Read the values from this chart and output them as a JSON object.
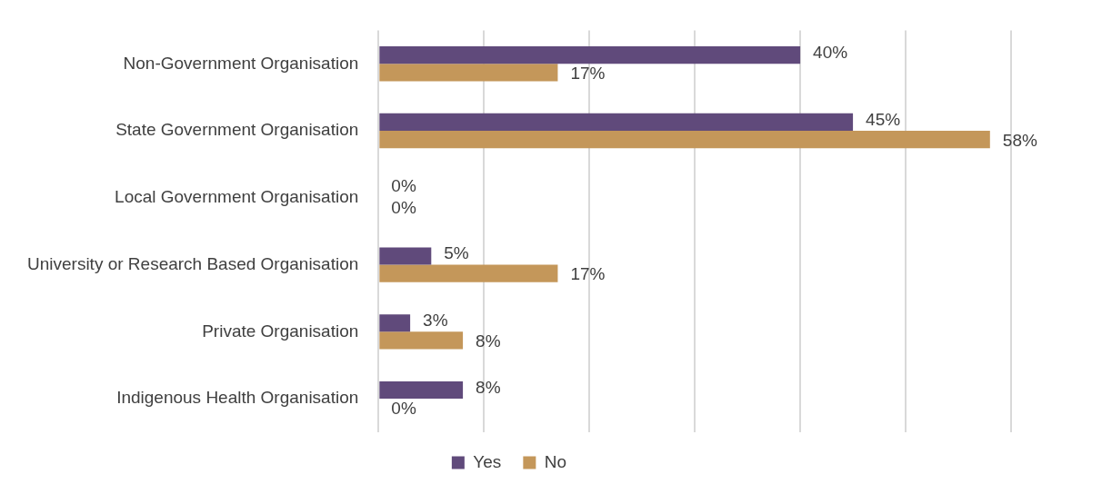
{
  "chart_data": {
    "type": "bar",
    "orientation": "horizontal",
    "categories": [
      "Non-Government Organisation",
      "State Government Organisation",
      "Local Government Organisation",
      "University or Research Based Organisation",
      "Private Organisation",
      "Indigenous Health Organisation"
    ],
    "series": [
      {
        "name": "Yes",
        "color": "#604a7b",
        "values": [
          40,
          45,
          0,
          5,
          3,
          8
        ],
        "value_labels": [
          "40%",
          "45%",
          "0%",
          "5%",
          "3%",
          "8%"
        ]
      },
      {
        "name": "No",
        "color": "#c4975a",
        "values": [
          17,
          58,
          0,
          17,
          8,
          0
        ],
        "value_labels": [
          "17%",
          "58%",
          "0%",
          "17%",
          "8%",
          "0%"
        ]
      }
    ],
    "tick_labels": "y",
    "grid": "x",
    "legend": "bottom"
  }
}
